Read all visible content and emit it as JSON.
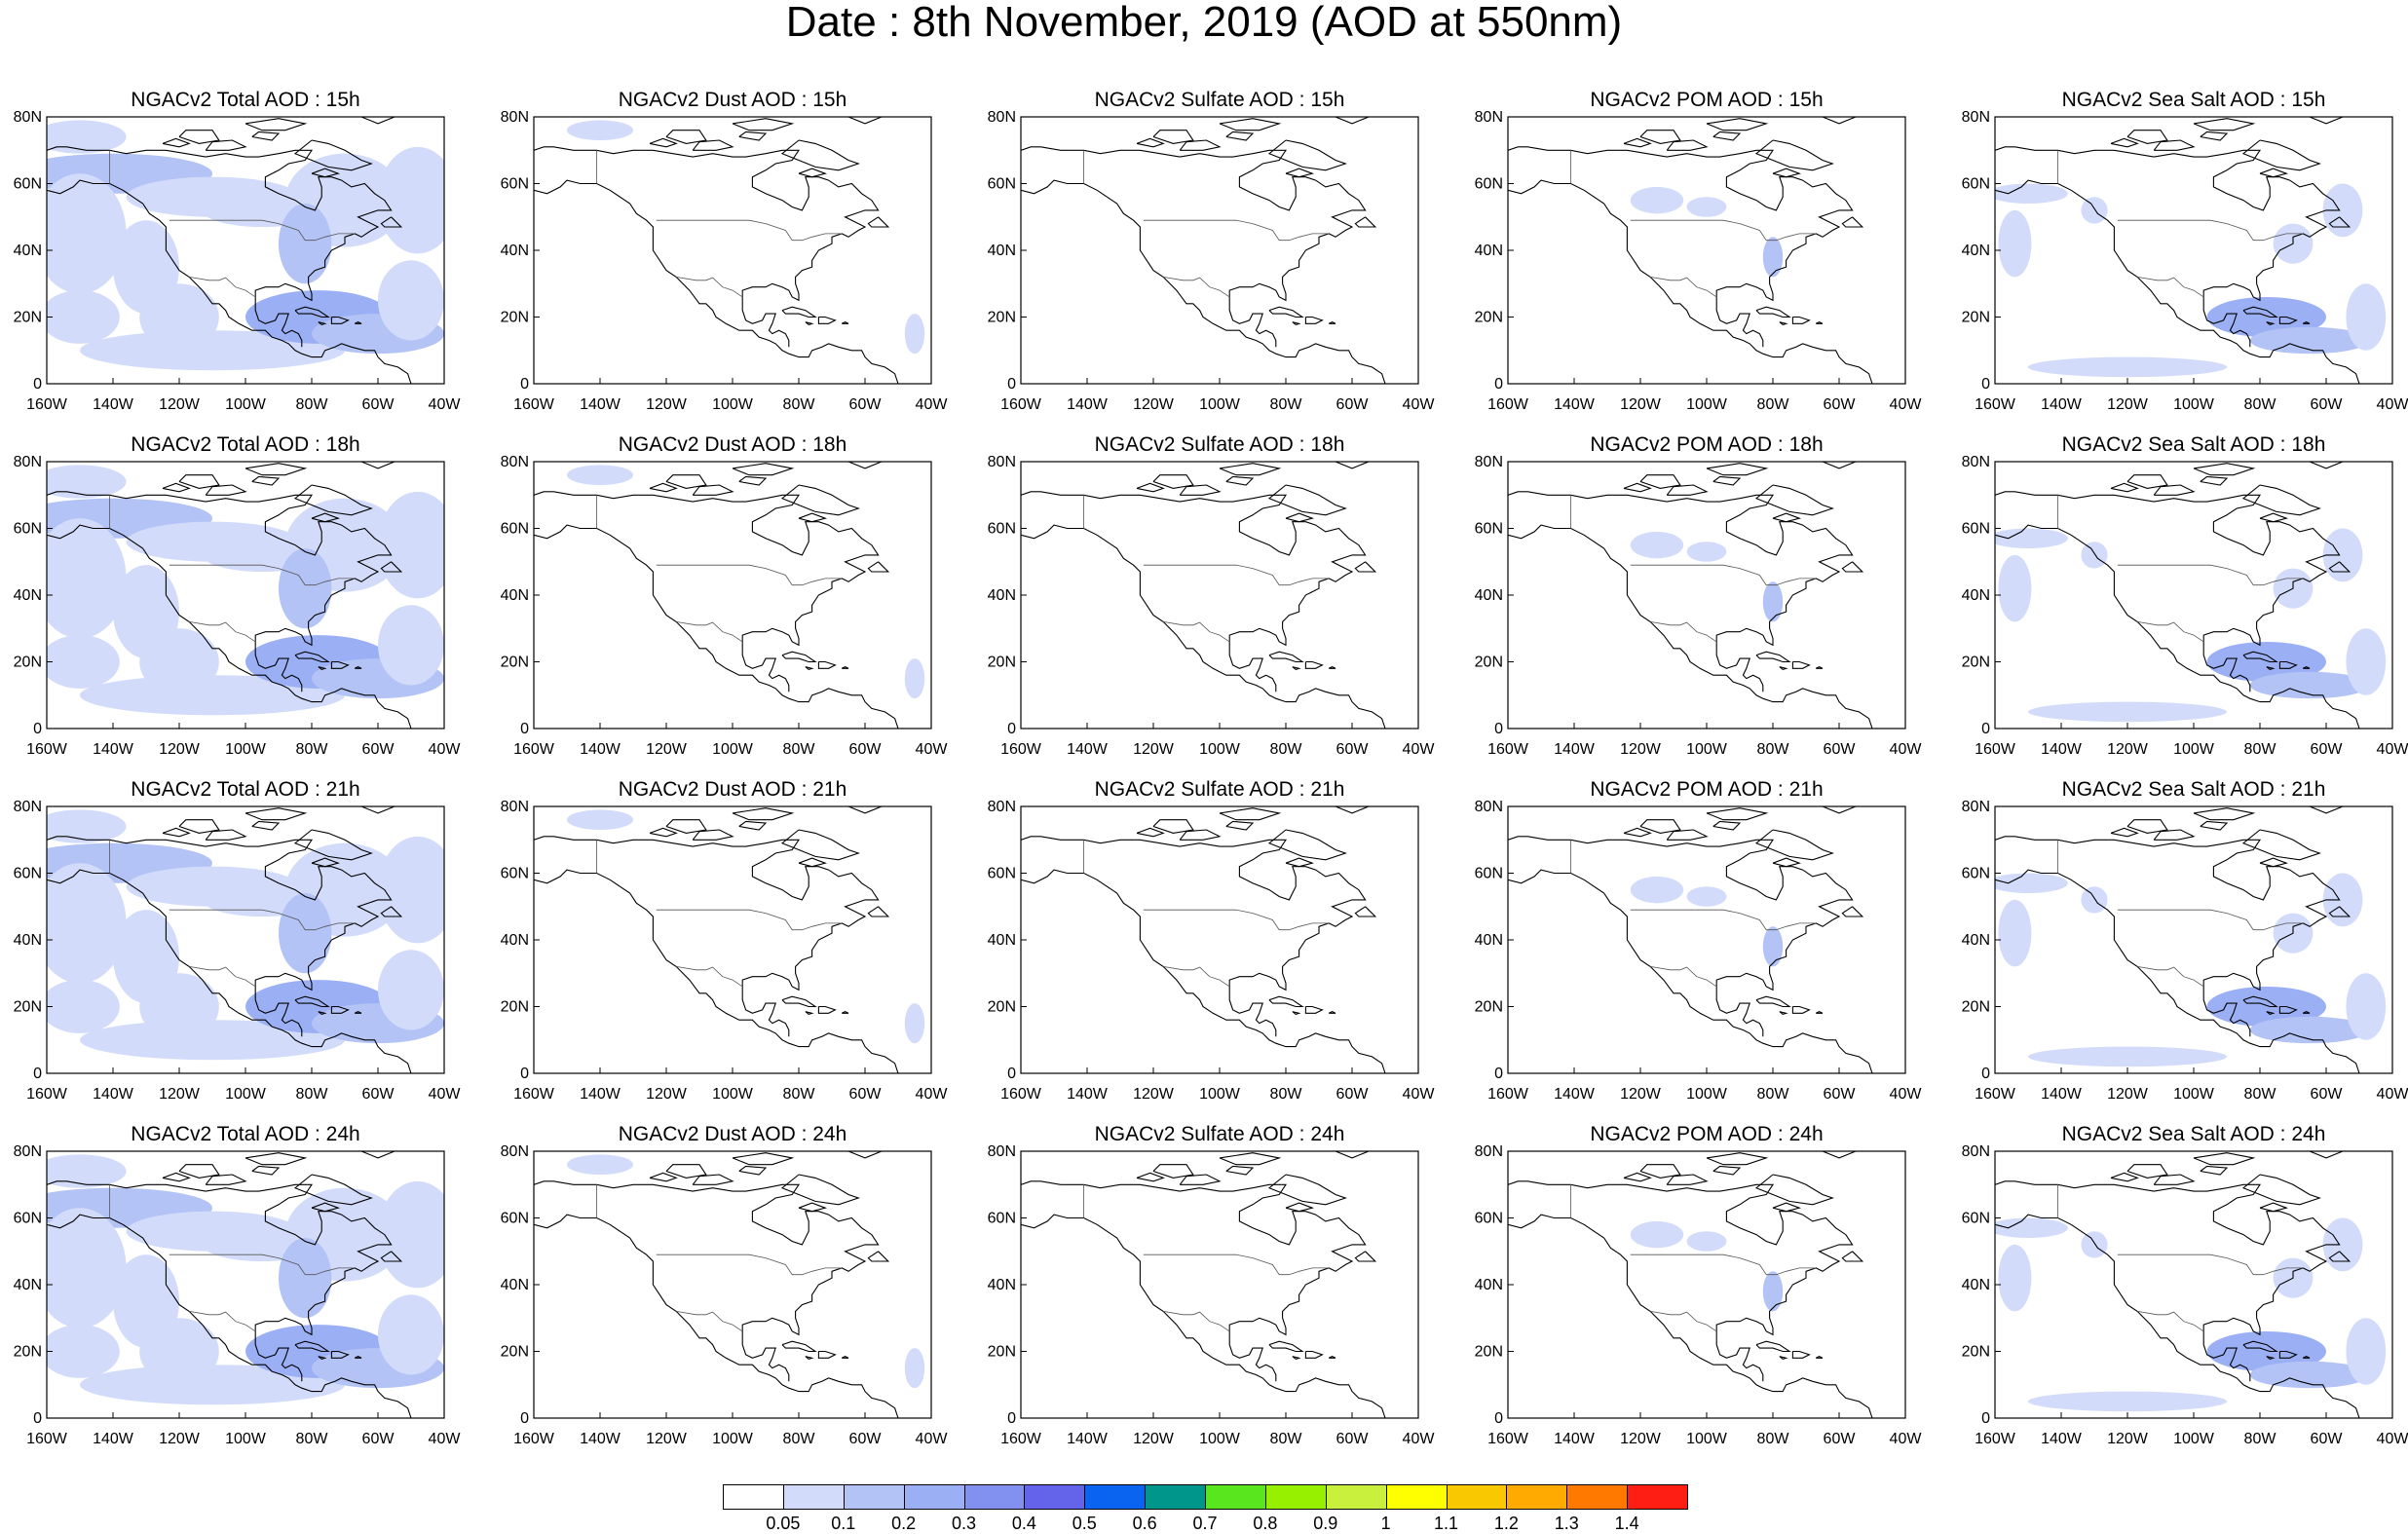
{
  "title": "Date : 8th November, 2019 (AOD at 550nm)",
  "lon_ticks": [
    "160W",
    "140W",
    "120W",
    "100W",
    "80W",
    "60W",
    "40W"
  ],
  "lat_ticks": [
    "0",
    "20N",
    "40N",
    "60N",
    "80N"
  ],
  "rows": [
    {
      "panels": [
        {
          "title": "NGACv2 Total AOD : 15h",
          "species": "total"
        },
        {
          "title": "NGACv2 Dust AOD : 15h",
          "species": "dust"
        },
        {
          "title": "NGACv2 Sulfate AOD : 15h",
          "species": "sulfate"
        },
        {
          "title": "NGACv2 POM AOD : 15h",
          "species": "pom"
        },
        {
          "title": "NGACv2 Sea Salt AOD : 15h",
          "species": "seasalt"
        }
      ]
    },
    {
      "panels": [
        {
          "title": "NGACv2 Total AOD : 18h",
          "species": "total"
        },
        {
          "title": "NGACv2 Dust AOD : 18h",
          "species": "dust"
        },
        {
          "title": "NGACv2 Sulfate AOD : 18h",
          "species": "sulfate"
        },
        {
          "title": "NGACv2 POM AOD : 18h",
          "species": "pom"
        },
        {
          "title": "NGACv2 Sea Salt AOD : 18h",
          "species": "seasalt"
        }
      ]
    },
    {
      "panels": [
        {
          "title": "NGACv2 Total AOD : 21h",
          "species": "total"
        },
        {
          "title": "NGACv2 Dust AOD : 21h",
          "species": "dust"
        },
        {
          "title": "NGACv2 Sulfate AOD : 21h",
          "species": "sulfate"
        },
        {
          "title": "NGACv2 POM AOD : 21h",
          "species": "pom"
        },
        {
          "title": "NGACv2 Sea Salt AOD : 21h",
          "species": "seasalt"
        }
      ]
    },
    {
      "panels": [
        {
          "title": "NGACv2 Total AOD : 24h",
          "species": "total"
        },
        {
          "title": "NGACv2 Dust AOD : 24h",
          "species": "dust"
        },
        {
          "title": "NGACv2 Sulfate AOD : 24h",
          "species": "sulfate"
        },
        {
          "title": "NGACv2 POM AOD : 24h",
          "species": "pom"
        },
        {
          "title": "NGACv2 Sea Salt  AOD : 24h",
          "species": "seasalt"
        }
      ]
    }
  ],
  "colorbar": {
    "colors": [
      "#ffffff",
      "#d2dcfa",
      "#b4c3f5",
      "#9baff5",
      "#8291f0",
      "#6464eb",
      "#0a64f0",
      "#00968c",
      "#5ae61e",
      "#96f000",
      "#c8f03c",
      "#ffff00",
      "#fac800",
      "#ffaa00",
      "#ff7800",
      "#ff1e14"
    ],
    "labels": [
      "0.05",
      "0.1",
      "0.2",
      "0.3",
      "0.4",
      "0.5",
      "0.6",
      "0.7",
      "0.8",
      "0.9",
      "1",
      "1.1",
      "1.2",
      "1.3",
      "1.4"
    ]
  }
}
